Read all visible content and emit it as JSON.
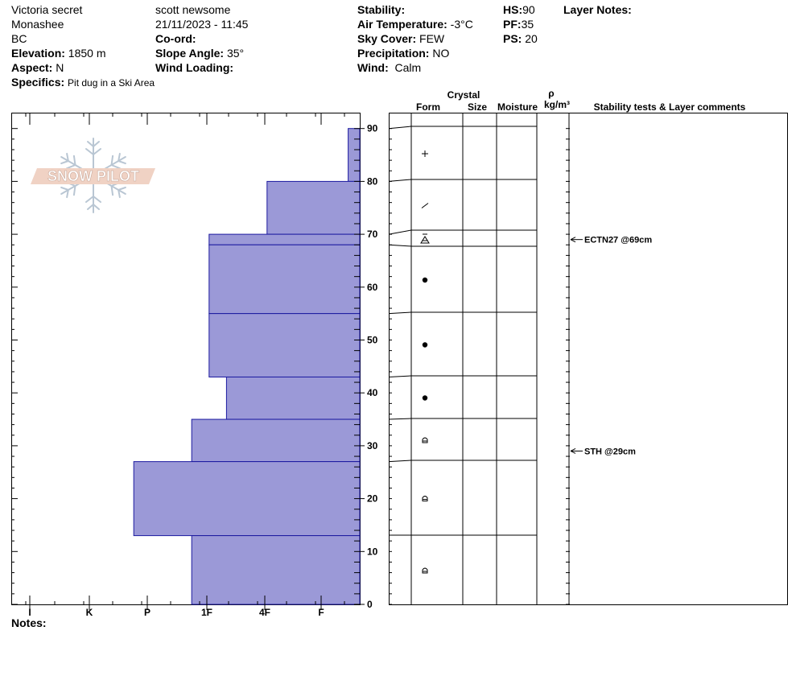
{
  "header": {
    "pit_name": "Victoria secret",
    "observer": "scott newsome",
    "range": "Monashee",
    "datetime": "21/11/2023 - 11:45",
    "region": "BC",
    "labels": {
      "coord": "Co-ord:",
      "elevation": "Elevation:",
      "slope_angle": "Slope Angle:",
      "aspect": "Aspect:",
      "wind_loading": "Wind Loading:",
      "specifics": "Specifics:",
      "stability": "Stability:",
      "air_temp": "Air Temperature:",
      "sky_cover": "Sky Cover:",
      "precipitation": "Precipitation:",
      "wind": "Wind:",
      "hs": "HS:",
      "pf": "PF:",
      "ps": "PS:",
      "layer_notes": "Layer Notes:",
      "notes": "Notes:"
    },
    "values": {
      "elevation": "1850 m",
      "slope_angle": "35°",
      "aspect": "N",
      "specifics": "Pit dug in a Ski Area",
      "air_temp": "-3°C",
      "sky_cover": "FEW",
      "precipitation": "NO",
      "wind": "Calm",
      "hs": "90",
      "pf": "35",
      "ps": "20"
    }
  },
  "logo_text": "SNOW PILOT",
  "columns": {
    "crystal": "Crystal",
    "form": "Form",
    "size": "Size",
    "moisture": "Moisture",
    "rho": "ρ",
    "density_unit": "kg/m³",
    "comments": "Stability tests & Layer comments"
  },
  "chart_data": {
    "type": "bar",
    "orientation": "horizontal",
    "y_axis": {
      "ylim": [
        0,
        90
      ],
      "ticks": [
        0,
        10,
        20,
        30,
        40,
        50,
        60,
        70,
        80,
        90
      ]
    },
    "hardness_ticks": [
      "I",
      "K",
      "P",
      "1F",
      "4F",
      "F"
    ],
    "layers": [
      {
        "bottom": 80,
        "top": 90,
        "hardness": 0.2,
        "form": "plus"
      },
      {
        "bottom": 70,
        "top": 80,
        "hardness": 1.6,
        "form": "slash"
      },
      {
        "bottom": 68,
        "top": 70,
        "hardness": 2.6,
        "form": "sh"
      },
      {
        "bottom": 55,
        "top": 68,
        "hardness": 2.6,
        "form": "dot"
      },
      {
        "bottom": 43,
        "top": 55,
        "hardness": 2.6,
        "form": "dot"
      },
      {
        "bottom": 35,
        "top": 43,
        "hardness": 2.3,
        "form": "dot"
      },
      {
        "bottom": 27,
        "top": 35,
        "hardness": 2.9,
        "form": "cup"
      },
      {
        "bottom": 13,
        "top": 27,
        "hardness": 3.9,
        "form": "cup"
      },
      {
        "bottom": 0,
        "top": 13,
        "hardness": 2.9,
        "form": "cup"
      }
    ],
    "tests": [
      {
        "label": "ECTN27 @69cm",
        "depth": 69
      },
      {
        "label": "STH @29cm",
        "depth": 29
      }
    ]
  }
}
